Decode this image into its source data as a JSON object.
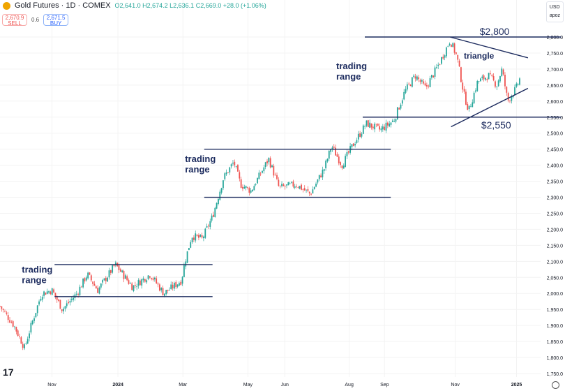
{
  "header": {
    "title": "Gold Futures · 1D · COMEX",
    "open": "O2,641.0",
    "high": "H2,674.2",
    "low": "L2,636.1",
    "close": "C2,669.0",
    "change": "+28.0 (+1.06%)"
  },
  "trade": {
    "sell_price": "2,670.9",
    "sell_label": "SELL",
    "spread": "0.6",
    "buy_price": "2,671.5",
    "buy_label": "BUY"
  },
  "units": {
    "currency": "USD",
    "unit": "apoz"
  },
  "logo": "TV",
  "colors": {
    "up": "#26a69a",
    "down": "#ef5350",
    "annotation": "#1c2b5e"
  },
  "chart_data": {
    "type": "candlestick",
    "ylim": [
      1750,
      2800
    ],
    "yticks": [
      2800,
      2750,
      2700,
      2650,
      2600,
      2550,
      2500,
      2450,
      2400,
      2350,
      2300,
      2250,
      2200,
      2150,
      2100,
      2050,
      2000,
      1950,
      1900,
      1850,
      1800,
      1750
    ],
    "xticks": [
      {
        "label": "Nov",
        "pos": 0.1
      },
      {
        "label": "2024",
        "pos": 0.227,
        "bold": true
      },
      {
        "label": "Mar",
        "pos": 0.352
      },
      {
        "label": "May",
        "pos": 0.477
      },
      {
        "label": "Jun",
        "pos": 0.548
      },
      {
        "label": "Aug",
        "pos": 0.672
      },
      {
        "label": "Sep",
        "pos": 0.74
      },
      {
        "label": "Nov",
        "pos": 0.876
      },
      {
        "label": "2025",
        "pos": 0.994,
        "bold": true
      }
    ],
    "close_path": [
      [
        0,
        1960
      ],
      [
        0.027,
        1900
      ],
      [
        0.047,
        1830
      ],
      [
        0.06,
        1900
      ],
      [
        0.08,
        2000
      ],
      [
        0.1,
        2010
      ],
      [
        0.12,
        1950
      ],
      [
        0.148,
        2000
      ],
      [
        0.168,
        2060
      ],
      [
        0.188,
        2010
      ],
      [
        0.222,
        2090
      ],
      [
        0.255,
        2020
      ],
      [
        0.289,
        2060
      ],
      [
        0.315,
        2000
      ],
      [
        0.349,
        2040
      ],
      [
        0.356,
        2100
      ],
      [
        0.369,
        2180
      ],
      [
        0.389,
        2170
      ],
      [
        0.409,
        2240
      ],
      [
        0.43,
        2360
      ],
      [
        0.45,
        2410
      ],
      [
        0.463,
        2340
      ],
      [
        0.483,
        2320
      ],
      [
        0.517,
        2420
      ],
      [
        0.537,
        2330
      ],
      [
        0.57,
        2340
      ],
      [
        0.597,
        2310
      ],
      [
        0.624,
        2390
      ],
      [
        0.638,
        2460
      ],
      [
        0.658,
        2400
      ],
      [
        0.678,
        2460
      ],
      [
        0.705,
        2530
      ],
      [
        0.732,
        2510
      ],
      [
        0.758,
        2540
      ],
      [
        0.779,
        2630
      ],
      [
        0.799,
        2680
      ],
      [
        0.819,
        2640
      ],
      [
        0.846,
        2720
      ],
      [
        0.866,
        2790
      ],
      [
        0.879,
        2740
      ],
      [
        0.893,
        2620
      ],
      [
        0.902,
        2570
      ],
      [
        0.919,
        2660
      ],
      [
        0.94,
        2680
      ],
      [
        0.956,
        2650
      ],
      [
        0.966,
        2700
      ],
      [
        0.977,
        2600
      ],
      [
        0.993,
        2640
      ],
      [
        1.0,
        2669
      ]
    ],
    "levels": [
      {
        "price": 2800,
        "from": 0.702,
        "to": 1.08,
        "label": "$2,800"
      },
      {
        "price": 2550,
        "from": 0.698,
        "to": 1.08,
        "label": "$2,550"
      },
      {
        "price": 2450,
        "from": 0.393,
        "to": 0.752
      },
      {
        "price": 2300,
        "from": 0.393,
        "to": 0.752
      },
      {
        "price": 2090,
        "from": 0.105,
        "to": 0.409
      },
      {
        "price": 1990,
        "from": 0.105,
        "to": 0.409
      }
    ],
    "triangle": {
      "upper": [
        [
          0.866,
          2800
        ],
        [
          1.016,
          2735
        ]
      ],
      "lower": [
        [
          0.868,
          2520
        ],
        [
          1.016,
          2640
        ]
      ],
      "label": "triangle"
    },
    "annotations": [
      {
        "text": "trading range",
        "pos": 0.647,
        "price": 2700
      },
      {
        "text": "trading range",
        "pos": 0.356,
        "price": 2410
      },
      {
        "text": "trading range",
        "pos": 0.042,
        "price": 2065
      }
    ]
  }
}
